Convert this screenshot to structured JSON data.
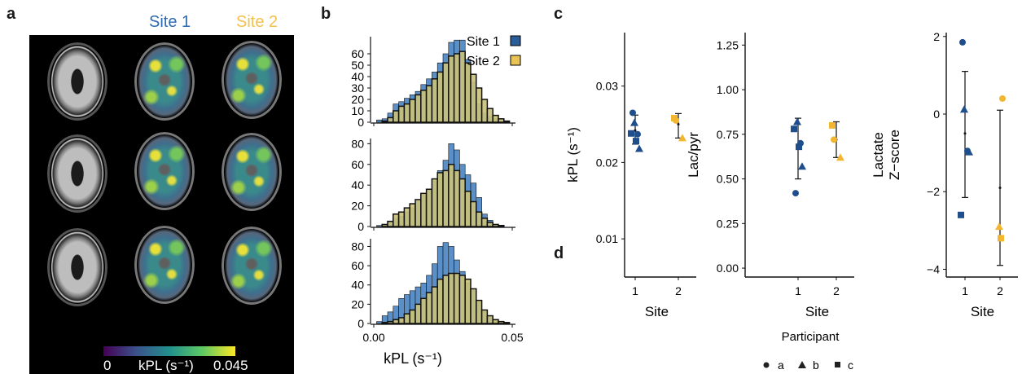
{
  "panel_labels": {
    "a": "a",
    "b": "b",
    "c": "c",
    "d": "d"
  },
  "panel_a": {
    "site1_header": "Site 1",
    "site2_header": "Site 2",
    "site1_color": "#2e6bb0",
    "site2_color": "#f2c14e",
    "colorbar": {
      "min": "0",
      "label": "kPL (s⁻¹)",
      "max": "0.045"
    }
  },
  "panel_b": {
    "legend": [
      "Site 1",
      "Site 2"
    ],
    "xlabel": "kPL (s⁻¹)",
    "x_ticks": [
      "0.00",
      "0.05"
    ]
  },
  "panel_c": {
    "plots": [
      {
        "ylabel": "kPL (s⁻¹)",
        "xlabel": "Site",
        "y_ticks": [
          "0.01",
          "0.02",
          "0.03"
        ],
        "x_ticks": [
          "1",
          "2"
        ]
      },
      {
        "ylabel": "Lac/pyr",
        "xlabel": "Site",
        "y_ticks": [
          "0.00",
          "0.25",
          "0.50",
          "0.75",
          "1.00",
          "1.25"
        ],
        "x_ticks": [
          "1",
          "2"
        ]
      },
      {
        "ylabel": "Lactate Z−score",
        "xlabel": "Site",
        "y_ticks": [
          "−4",
          "−2",
          "0",
          "2"
        ],
        "x_ticks": [
          "1",
          "2"
        ]
      }
    ],
    "legend_title": "Participant",
    "legend_items": [
      "a",
      "b",
      "c"
    ]
  },
  "chart_data": [
    {
      "type": "bar",
      "xlabel": "kPL (s⁻¹)",
      "x": [
        0.002,
        0.004,
        0.006,
        0.008,
        0.01,
        0.012,
        0.014,
        0.016,
        0.018,
        0.02,
        0.022,
        0.024,
        0.026,
        0.028,
        0.03,
        0.032,
        0.034,
        0.036,
        0.038,
        0.04,
        0.042,
        0.044,
        0.046,
        0.048
      ],
      "series": [
        {
          "name": "Site 1",
          "color": "#5b8fc7",
          "values": [
            2,
            3,
            8,
            16,
            18,
            21,
            24,
            27,
            33,
            38,
            44,
            52,
            60,
            70,
            72,
            72,
            55,
            35,
            16,
            8,
            5,
            3,
            1,
            0
          ]
        },
        {
          "name": "Site 2",
          "color": "#c9c17a",
          "values": [
            0,
            1,
            4,
            10,
            14,
            16,
            20,
            24,
            28,
            32,
            38,
            44,
            52,
            58,
            60,
            62,
            52,
            42,
            30,
            20,
            12,
            6,
            3,
            1
          ]
        }
      ],
      "ylim": [
        0,
        75
      ],
      "yticks": [
        0,
        10,
        20,
        30,
        40,
        50,
        60
      ]
    },
    {
      "type": "bar",
      "xlabel": "kPL (s⁻¹)",
      "x": [
        0.002,
        0.004,
        0.006,
        0.008,
        0.01,
        0.012,
        0.014,
        0.016,
        0.018,
        0.02,
        0.022,
        0.024,
        0.026,
        0.028,
        0.03,
        0.032,
        0.034,
        0.036,
        0.038,
        0.04,
        0.042,
        0.044,
        0.046,
        0.048
      ],
      "series": [
        {
          "name": "Site 1",
          "color": "#5b8fc7",
          "values": [
            1,
            2,
            4,
            8,
            10,
            14,
            18,
            24,
            30,
            36,
            44,
            54,
            64,
            80,
            74,
            60,
            50,
            42,
            28,
            12,
            6,
            2,
            1,
            0
          ]
        },
        {
          "name": "Site 2",
          "color": "#c9c17a",
          "values": [
            0,
            2,
            5,
            12,
            14,
            18,
            22,
            26,
            32,
            36,
            46,
            52,
            54,
            60,
            54,
            46,
            34,
            24,
            14,
            8,
            4,
            2,
            1,
            0
          ]
        }
      ],
      "ylim": [
        0,
        85
      ],
      "yticks": [
        0,
        20,
        40,
        60,
        80
      ]
    },
    {
      "type": "bar",
      "xlabel": "kPL (s⁻¹)",
      "x": [
        0.002,
        0.004,
        0.006,
        0.008,
        0.01,
        0.012,
        0.014,
        0.016,
        0.018,
        0.02,
        0.022,
        0.024,
        0.026,
        0.028,
        0.03,
        0.032,
        0.034,
        0.036,
        0.038,
        0.04,
        0.042,
        0.044,
        0.046,
        0.048
      ],
      "series": [
        {
          "name": "Site 1",
          "color": "#5b8fc7",
          "values": [
            2,
            8,
            12,
            18,
            26,
            30,
            34,
            38,
            42,
            50,
            62,
            80,
            84,
            80,
            66,
            54,
            42,
            34,
            22,
            12,
            6,
            3,
            1,
            0
          ]
        },
        {
          "name": "Site 2",
          "color": "#c9c17a",
          "values": [
            0,
            1,
            2,
            4,
            6,
            10,
            14,
            20,
            26,
            32,
            38,
            46,
            50,
            52,
            52,
            50,
            46,
            36,
            24,
            14,
            8,
            4,
            2,
            1
          ]
        }
      ],
      "ylim": [
        0,
        88
      ],
      "yticks": [
        0,
        20,
        40,
        60,
        80
      ],
      "xticks": [
        0.0,
        0.05
      ]
    },
    {
      "type": "scatter",
      "ylabel": "kPL (s⁻¹)",
      "xlabel": "Site",
      "ylim": [
        0.005,
        0.037
      ],
      "points": [
        {
          "site": 1,
          "participant": "a",
          "y": 0.0265
        },
        {
          "site": 1,
          "participant": "a",
          "y": 0.0237
        },
        {
          "site": 1,
          "participant": "b",
          "y": 0.0252
        },
        {
          "site": 1,
          "participant": "b",
          "y": 0.0218
        },
        {
          "site": 1,
          "participant": "c",
          "y": 0.0238
        },
        {
          "site": 1,
          "participant": "c",
          "y": 0.0228
        },
        {
          "site": 2,
          "participant": "a",
          "y": 0.0255
        },
        {
          "site": 2,
          "participant": "b",
          "y": 0.0232
        },
        {
          "site": 2,
          "participant": "c",
          "y": 0.0258
        }
      ],
      "errorbars": [
        {
          "site": 1,
          "mean": 0.0242,
          "lo": 0.0224,
          "hi": 0.0262
        },
        {
          "site": 2,
          "mean": 0.025,
          "lo": 0.0232,
          "hi": 0.0264
        }
      ]
    },
    {
      "type": "scatter",
      "ylabel": "Lac/pyr",
      "xlabel": "Site",
      "ylim": [
        -0.05,
        1.32
      ],
      "points": [
        {
          "site": 1,
          "participant": "a",
          "y": 0.42
        },
        {
          "site": 1,
          "participant": "a",
          "y": 0.7
        },
        {
          "site": 1,
          "participant": "b",
          "y": 0.82
        },
        {
          "site": 1,
          "participant": "b",
          "y": 0.57
        },
        {
          "site": 1,
          "participant": "c",
          "y": 0.78
        },
        {
          "site": 1,
          "participant": "c",
          "y": 0.68
        },
        {
          "site": 2,
          "participant": "a",
          "y": 0.72
        },
        {
          "site": 2,
          "participant": "b",
          "y": 0.62
        },
        {
          "site": 2,
          "participant": "c",
          "y": 0.8
        }
      ],
      "errorbars": [
        {
          "site": 1,
          "mean": 0.67,
          "lo": 0.5,
          "hi": 0.84
        },
        {
          "site": 2,
          "mean": 0.72,
          "lo": 0.62,
          "hi": 0.82
        }
      ]
    },
    {
      "type": "scatter",
      "ylabel": "Lactate Z−score",
      "xlabel": "Site",
      "ylim": [
        -4.2,
        2.1
      ],
      "points": [
        {
          "site": 1,
          "participant": "a",
          "y": 1.85
        },
        {
          "site": 1,
          "participant": "a",
          "y": -0.95
        },
        {
          "site": 1,
          "participant": "b",
          "y": 0.12
        },
        {
          "site": 1,
          "participant": "b",
          "y": -0.98
        },
        {
          "site": 1,
          "participant": "c",
          "y": -2.6
        },
        {
          "site": 2,
          "participant": "a",
          "y": 0.4
        },
        {
          "site": 2,
          "participant": "b",
          "y": -2.9
        },
        {
          "site": 2,
          "participant": "c",
          "y": -3.2
        }
      ],
      "errorbars": [
        {
          "site": 1,
          "mean": -0.5,
          "lo": -2.15,
          "hi": 1.1
        },
        {
          "site": 2,
          "mean": -1.9,
          "lo": -3.9,
          "hi": 0.1
        }
      ]
    }
  ]
}
